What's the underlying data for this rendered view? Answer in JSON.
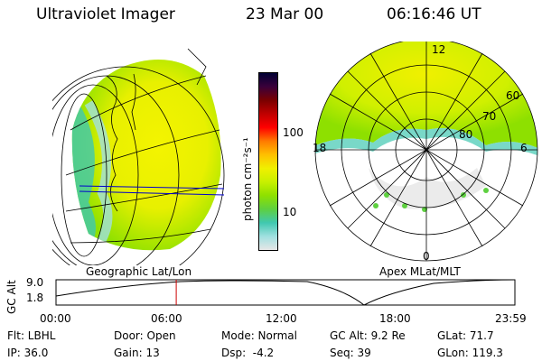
{
  "header": {
    "instrument": "Ultraviolet Imager",
    "date": "23 Mar 00",
    "time": "06:16:46 UT"
  },
  "colorbar": {
    "unit_label": "photon cm⁻²s⁻¹",
    "ticks": [
      "100",
      "10"
    ],
    "colors": [
      "#000033",
      "#3a003a",
      "#7a0000",
      "#c00000",
      "#ff0000",
      "#ff7a00",
      "#ffc000",
      "#f0f000",
      "#c8f000",
      "#8ee000",
      "#5ed040",
      "#40c8b0",
      "#a0e0e0",
      "#e6e6e6"
    ]
  },
  "polar": {
    "top_label": "12",
    "left_label": "18",
    "right_label": "6",
    "bottom_label": "0",
    "lat_labels": [
      "60",
      "70",
      "80"
    ]
  },
  "panels": {
    "left_caption": "Geographic Lat/Lon",
    "right_caption": "Apex MLat/MLT"
  },
  "altplot": {
    "axis_label": "GC Alt",
    "y_ticks": [
      "9.0",
      "1.8"
    ],
    "x_ticks": [
      "00:00",
      "06:00",
      "12:00",
      "18:00",
      "23:59"
    ],
    "current_time_fraction": 0.262,
    "marker_color": "#cc0000"
  },
  "info": {
    "row1": [
      {
        "label": "Flt: LBHL"
      },
      {
        "label": "Door: Open"
      },
      {
        "label": "Mode: Normal"
      },
      {
        "label": "GC Alt: 9.2 Re"
      },
      {
        "label": "GLat: 71.7"
      }
    ],
    "row2": [
      {
        "label": "IP: 36.0"
      },
      {
        "label": "Gain: 13"
      },
      {
        "label": "Dsp:  -4.2"
      },
      {
        "label": "Seq: 39"
      },
      {
        "label": "GLon: 119.3"
      }
    ]
  }
}
